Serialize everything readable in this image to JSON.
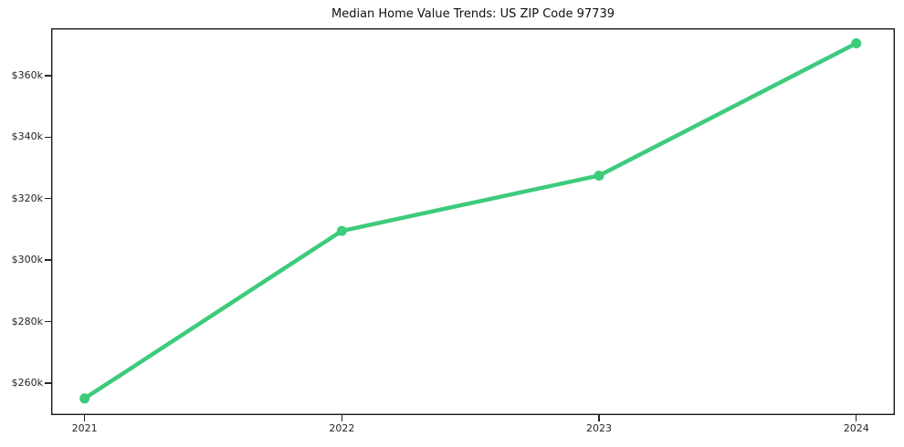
{
  "figure": {
    "background_color": "#ffffff",
    "frame_color": "#1a1a1a",
    "tick_text_color": "#262626"
  },
  "chart_data": {
    "type": "line",
    "title": "Median Home Value Trends: US ZIP Code 97739",
    "xlabel": "",
    "ylabel": "",
    "x": [
      2021,
      2022,
      2023,
      2024
    ],
    "values": [
      255000,
      309500,
      327500,
      370500
    ],
    "line_color": "#3dcb7c",
    "marker": "circle",
    "xlim": [
      2020.87,
      2024.15
    ],
    "ylim": [
      249600,
      375400
    ],
    "xticks": [
      {
        "value": 2021,
        "label": "2021"
      },
      {
        "value": 2022,
        "label": "2022"
      },
      {
        "value": 2023,
        "label": "2023"
      },
      {
        "value": 2024,
        "label": "2024"
      }
    ],
    "yticks": [
      {
        "value": 260000,
        "label": "$260k"
      },
      {
        "value": 280000,
        "label": "$280k"
      },
      {
        "value": 300000,
        "label": "$300k"
      },
      {
        "value": 320000,
        "label": "$320k"
      },
      {
        "value": 340000,
        "label": "$340k"
      },
      {
        "value": 360000,
        "label": "$360k"
      }
    ],
    "grid": false,
    "legend": "none"
  }
}
